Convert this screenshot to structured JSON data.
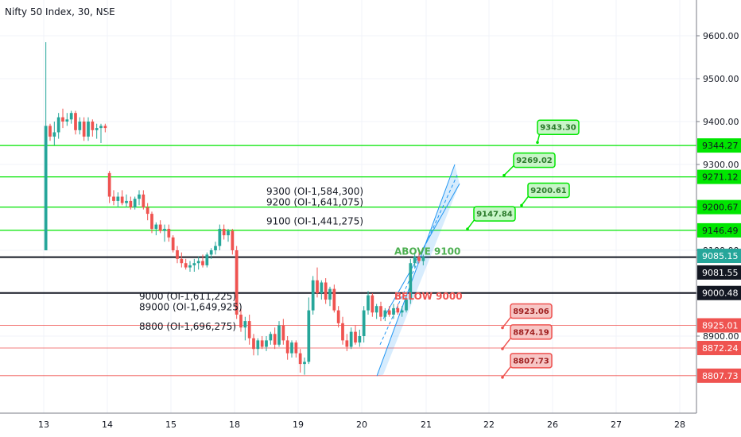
{
  "header": {
    "title": "Nifty 50 Index, 30, NSE"
  },
  "colors": {
    "up": "#26a69a",
    "down": "#ef5350",
    "support": "#00e600",
    "level": "#131722",
    "red_line": "#ef5350",
    "channel": "#2196f3"
  },
  "chart_data": {
    "type": "candlestick",
    "xlabel": "",
    "ylabel": "",
    "ylim": [
      8780,
      9690
    ],
    "x_ticks": [
      "13",
      "14",
      "15",
      "18",
      "19",
      "20",
      "21",
      "22",
      "26",
      "27",
      "28"
    ],
    "y_ticks": [
      "9600.00",
      "9500.00",
      "9400.00",
      "9300.00",
      "9200.00",
      "9100.00",
      "9000.00",
      "8900.00"
    ],
    "price_labels": [
      {
        "text": "9344.27",
        "value": 9344.27,
        "style": "green"
      },
      {
        "text": "9271.12",
        "value": 9271.12,
        "style": "green"
      },
      {
        "text": "9200.67",
        "value": 9200.67,
        "style": "green"
      },
      {
        "text": "9146.49",
        "value": 9146.49,
        "style": "green"
      },
      {
        "text": "9085.15",
        "value": 9085.15,
        "style": "teal"
      },
      {
        "text": "9081.55",
        "value": 9081.55,
        "style": "dark"
      },
      {
        "text": "9000.48",
        "value": 9000.48,
        "style": "dark"
      },
      {
        "text": "8925.01",
        "value": 8925.01,
        "style": "red"
      },
      {
        "text": "8872.24",
        "value": 8872.24,
        "style": "red"
      },
      {
        "text": "8807.73",
        "value": 8807.73,
        "style": "red"
      }
    ],
    "horizontal_lines": [
      {
        "value": 9344.27,
        "color": "support"
      },
      {
        "value": 9271.12,
        "color": "support"
      },
      {
        "value": 9200.67,
        "color": "support"
      },
      {
        "value": 9146.49,
        "color": "support"
      },
      {
        "value": 9084,
        "color": "level"
      },
      {
        "value": 9000.48,
        "color": "level"
      },
      {
        "value": 8925.01,
        "color": "red_line"
      },
      {
        "value": 8872.24,
        "color": "red_line"
      },
      {
        "value": 8807.73,
        "color": "red_line"
      }
    ],
    "annotations": [
      {
        "text": "9300 (OI-1,584,300)",
        "x": "19",
        "y": 9230,
        "color": "#131722"
      },
      {
        "text": "9200 (OI-1,641,075)",
        "x": "19",
        "y": 9205,
        "color": "#131722"
      },
      {
        "text": "9100 (OI-1,441,275)",
        "x": "19",
        "y": 9160,
        "color": "#131722"
      },
      {
        "text": "ABOVE 9100",
        "x": "21",
        "y": 9090,
        "color": "#4caf50"
      },
      {
        "text": "BELOW 9000",
        "x": "21",
        "y": 8985,
        "color": "#ef5350"
      },
      {
        "text": "9000 (OI-1,611,225)",
        "x": "15",
        "y": 8985,
        "color": "#131722"
      },
      {
        "text": "89000 (OI-1,649,925)",
        "x": "15",
        "y": 8960,
        "color": "#131722"
      },
      {
        "text": "8800 (OI-1,696,275)",
        "x": "15",
        "y": 8915,
        "color": "#131722"
      }
    ],
    "callouts": [
      {
        "text": "9343.30",
        "value": 9343.3,
        "type": "green"
      },
      {
        "text": "9269.02",
        "value": 9269.02,
        "type": "green"
      },
      {
        "text": "9200.61",
        "value": 9200.61,
        "type": "green"
      },
      {
        "text": "9147.84",
        "value": 9147.84,
        "type": "green"
      },
      {
        "text": "8923.06",
        "value": 8923.06,
        "type": "red"
      },
      {
        "text": "8874.19",
        "value": 8874.19,
        "type": "red"
      },
      {
        "text": "8807.73",
        "value": 8807.73,
        "type": "red"
      }
    ],
    "days": [
      {
        "label": "13",
        "bars": [
          [
            9100,
            9585,
            9390,
            9390
          ],
          [
            9390,
            9395,
            9355,
            9365
          ],
          [
            9365,
            9400,
            9345,
            9375
          ],
          [
            9375,
            9420,
            9360,
            9410
          ],
          [
            9410,
            9430,
            9385,
            9400
          ],
          [
            9400,
            9420,
            9390,
            9405
          ],
          [
            9405,
            9425,
            9395,
            9420
          ],
          [
            9420,
            9425,
            9370,
            9380
          ],
          [
            9380,
            9410,
            9370,
            9400
          ],
          [
            9400,
            9410,
            9355,
            9365
          ],
          [
            9365,
            9410,
            9355,
            9400
          ],
          [
            9400,
            9405,
            9365,
            9380
          ],
          [
            9380,
            9395,
            9360,
            9385
          ],
          [
            9385,
            9395,
            9350,
            9390
          ],
          [
            9390,
            9395,
            9375,
            9385
          ]
        ]
      },
      {
        "label": "14",
        "bars": [
          [
            9280,
            9285,
            9210,
            9225
          ],
          [
            9225,
            9240,
            9205,
            9215
          ],
          [
            9215,
            9235,
            9200,
            9225
          ],
          [
            9225,
            9240,
            9205,
            9210
          ],
          [
            9210,
            9230,
            9200,
            9215
          ],
          [
            9215,
            9225,
            9195,
            9200
          ],
          [
            9200,
            9225,
            9195,
            9220
          ],
          [
            9220,
            9240,
            9205,
            9230
          ],
          [
            9230,
            9240,
            9195,
            9200
          ],
          [
            9200,
            9210,
            9170,
            9185
          ],
          [
            9185,
            9190,
            9140,
            9150
          ],
          [
            9150,
            9165,
            9135,
            9160
          ],
          [
            9160,
            9170,
            9140,
            9145
          ],
          [
            9145,
            9160,
            9120,
            9150
          ],
          [
            9150,
            9160,
            9120,
            9130
          ]
        ]
      },
      {
        "label": "15",
        "bars": [
          [
            9130,
            9135,
            9095,
            9100
          ],
          [
            9100,
            9110,
            9070,
            9080
          ],
          [
            9080,
            9095,
            9060,
            9070
          ],
          [
            9070,
            9080,
            9055,
            9060
          ],
          [
            9060,
            9075,
            9050,
            9065
          ],
          [
            9065,
            9080,
            9050,
            9070
          ],
          [
            9070,
            9085,
            9055,
            9075
          ],
          [
            9075,
            9090,
            9060,
            9065
          ],
          [
            9065,
            9095,
            9060,
            9090
          ],
          [
            9090,
            9105,
            9080,
            9100
          ],
          [
            9100,
            9120,
            9090,
            9110
          ],
          [
            9110,
            9160,
            9100,
            9150
          ],
          [
            9150,
            9160,
            9125,
            9135
          ],
          [
            9135,
            9150,
            9120,
            9145
          ],
          [
            9145,
            9150,
            9090,
            9100
          ]
        ]
      },
      {
        "label": "18",
        "bars": [
          [
            9100,
            9110,
            8940,
            8950
          ],
          [
            8950,
            8970,
            8910,
            8920
          ],
          [
            8920,
            8945,
            8890,
            8935
          ],
          [
            8935,
            8950,
            8880,
            8895
          ],
          [
            8895,
            8905,
            8855,
            8870
          ],
          [
            8870,
            8895,
            8855,
            8890
          ],
          [
            8890,
            8900,
            8870,
            8875
          ],
          [
            8875,
            8900,
            8865,
            8890
          ],
          [
            8890,
            8910,
            8880,
            8905
          ],
          [
            8905,
            8920,
            8870,
            8880
          ],
          [
            8880,
            8935,
            8875,
            8925
          ],
          [
            8925,
            8940,
            8880,
            8890
          ],
          [
            8890,
            8900,
            8845,
            8860
          ],
          [
            8860,
            8890,
            8850,
            8885
          ],
          [
            8885,
            8890,
            8850,
            8860
          ]
        ]
      },
      {
        "label": "19",
        "bars": [
          [
            8860,
            8870,
            8815,
            8835
          ],
          [
            8835,
            8850,
            8810,
            8840
          ],
          [
            8840,
            8990,
            8835,
            8960
          ],
          [
            8960,
            9040,
            8950,
            9030
          ],
          [
            9030,
            9060,
            8990,
            9000
          ],
          [
            9000,
            9030,
            8985,
            9025
          ],
          [
            9025,
            9035,
            8975,
            8985
          ],
          [
            8985,
            9015,
            8970,
            9010
          ],
          [
            9010,
            9020,
            8955,
            8960
          ],
          [
            8960,
            8970,
            8920,
            8930
          ],
          [
            8930,
            8945,
            8880,
            8890
          ],
          [
            8890,
            8905,
            8865,
            8875
          ],
          [
            8875,
            8920,
            8870,
            8910
          ],
          [
            8910,
            8925,
            8880,
            8885
          ],
          [
            8885,
            8915,
            8875,
            8900
          ]
        ]
      },
      {
        "label": "20",
        "bars": [
          [
            8900,
            8970,
            8885,
            8960
          ],
          [
            8960,
            9005,
            8950,
            8995
          ],
          [
            8995,
            9000,
            8945,
            8955
          ],
          [
            8955,
            8975,
            8940,
            8970
          ],
          [
            8970,
            8980,
            8935,
            8945
          ],
          [
            8945,
            8965,
            8935,
            8960
          ],
          [
            8960,
            8970,
            8945,
            8950
          ],
          [
            8950,
            8975,
            8940,
            8965
          ],
          [
            8965,
            8975,
            8950,
            8955
          ],
          [
            8955,
            8970,
            8945,
            8960
          ],
          [
            8960,
            8990,
            8955,
            8985
          ],
          [
            8985,
            9080,
            8975,
            9070
          ],
          [
            9070,
            9095,
            9060,
            9085
          ],
          [
            9085,
            9095,
            9070,
            9075
          ],
          [
            9075,
            9090,
            9065,
            9085
          ]
        ]
      }
    ]
  }
}
